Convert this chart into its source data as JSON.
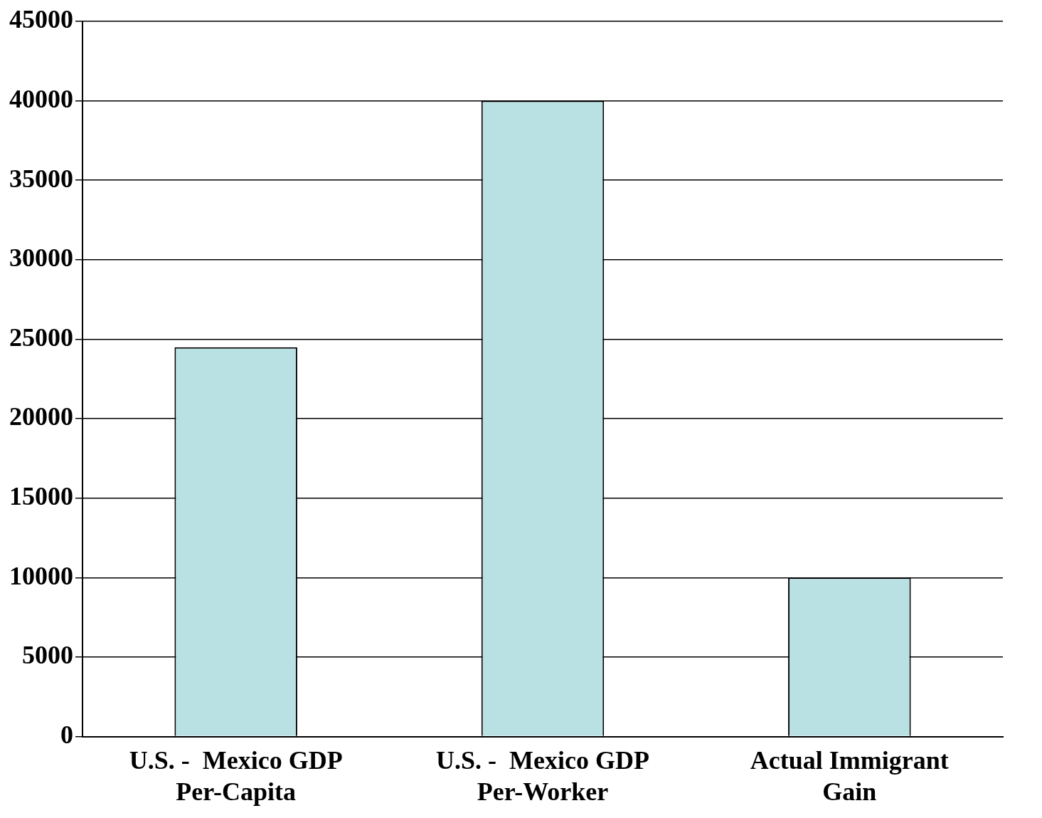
{
  "chart_data": {
    "type": "bar",
    "categories": [
      "U.S. -  Mexico GDP Per-Capita",
      "U.S. -  Mexico GDP Per-Worker",
      "Actual Immigrant Gain"
    ],
    "values": [
      24500,
      40000,
      10000
    ],
    "color": "#b9e0e3",
    "ylim": [
      0,
      45000
    ],
    "yticks": [
      0,
      5000,
      10000,
      15000,
      20000,
      25000,
      30000,
      35000,
      40000,
      45000
    ],
    "grid": "y",
    "legend": false
  }
}
